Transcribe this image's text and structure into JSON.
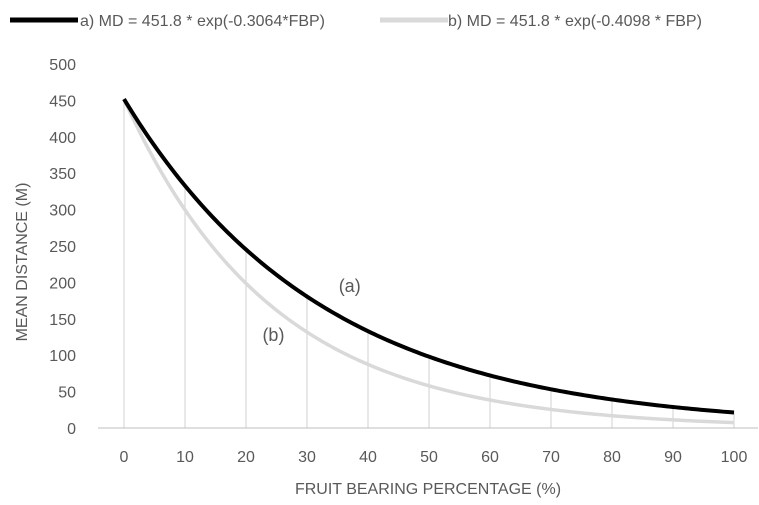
{
  "chart_data": {
    "type": "line",
    "xlabel": "FRUIT BEARING PERCENTAGE (%)",
    "ylabel": "MEAN DISTANCE (M)",
    "xlim": [
      0,
      100
    ],
    "ylim": [
      0,
      500
    ],
    "x_ticks": [
      "0",
      "10",
      "20",
      "30",
      "40",
      "50",
      "60",
      "70",
      "80",
      "90",
      "100"
    ],
    "y_ticks": [
      "0",
      "50",
      "100",
      "150",
      "200",
      "250",
      "300",
      "350",
      "400",
      "450",
      "500"
    ],
    "x": [
      0,
      10,
      20,
      30,
      40,
      50,
      60,
      70,
      80,
      90,
      100
    ],
    "legend_position": "top",
    "series": [
      {
        "name": "a) MD = 451.8 * exp(-0.3064*FBP)",
        "color": "#000000",
        "values": [
          451.8,
          332.8,
          245.1,
          180.5,
          132.9,
          97.9,
          72.1,
          53.1,
          39.1,
          28.8,
          21.2
        ]
      },
      {
        "name": "b) MD = 451.8 * exp(-0.4098 * FBP)",
        "color": "#d9d9d9",
        "values": [
          451.8,
          299.6,
          198.7,
          131.8,
          87.4,
          58.0,
          38.5,
          25.5,
          16.9,
          11.2,
          7.5
        ]
      }
    ],
    "annotations": [
      {
        "text": "(a)",
        "x": 37,
        "y": 195
      },
      {
        "text": "(b)",
        "x": 24.5,
        "y": 128
      }
    ],
    "grid": "vertical drop lines at each x"
  }
}
